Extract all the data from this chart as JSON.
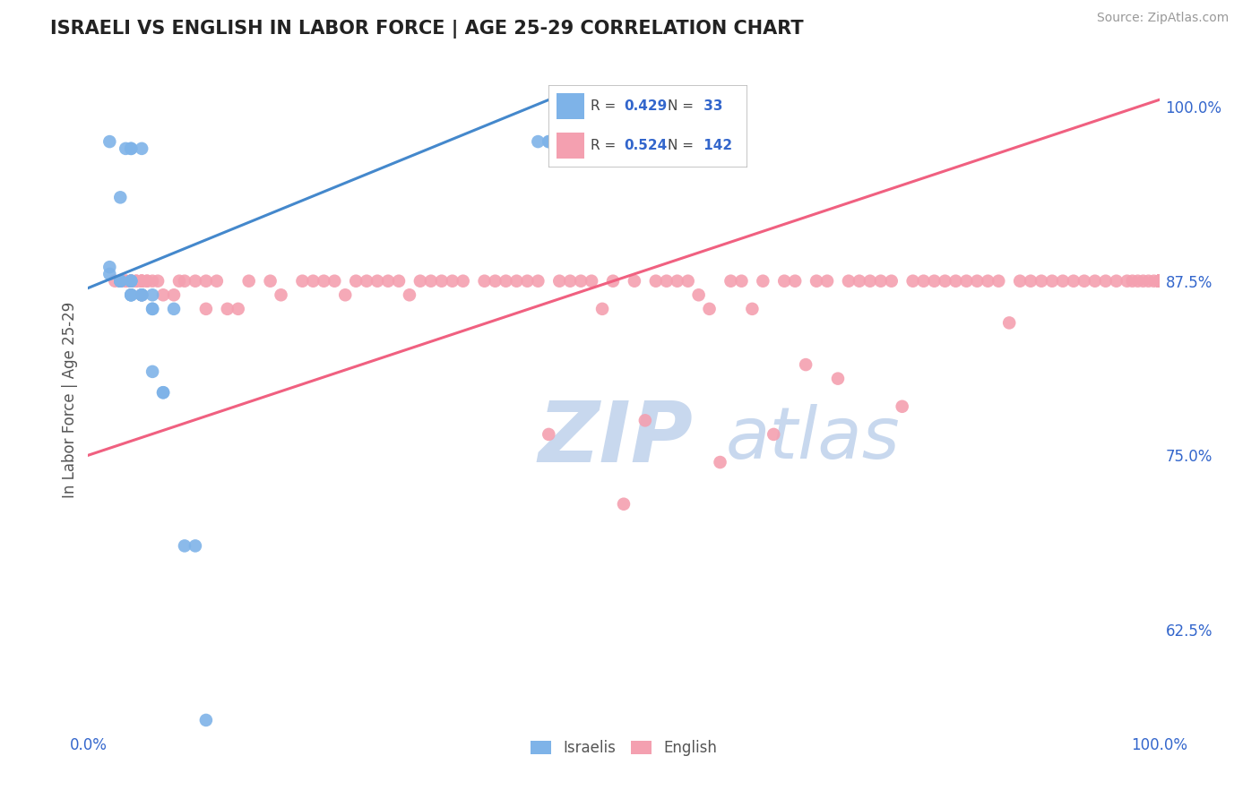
{
  "title": "ISRAELI VS ENGLISH IN LABOR FORCE | AGE 25-29 CORRELATION CHART",
  "source_text": "Source: ZipAtlas.com",
  "ylabel": "In Labor Force | Age 25-29",
  "xlim": [
    0.0,
    1.0
  ],
  "ylim": [
    0.555,
    1.025
  ],
  "yticks": [
    0.625,
    0.75,
    0.875,
    1.0
  ],
  "ytick_labels": [
    "62.5%",
    "75.0%",
    "87.5%",
    "100.0%"
  ],
  "israeli_R": 0.429,
  "israeli_N": 33,
  "english_R": 0.524,
  "english_N": 142,
  "israeli_color": "#7EB3E8",
  "english_color": "#F4A0B0",
  "israeli_line_color": "#4488CC",
  "english_line_color": "#F06080",
  "title_color": "#222222",
  "tick_label_color": "#3366CC",
  "watermark_color": "#C8D8EE",
  "background_color": "#FFFFFF",
  "grid_color": "#DDDDDD",
  "israeli_line_x": [
    0.0,
    0.43
  ],
  "israeli_line_y": [
    0.87,
    1.005
  ],
  "english_line_x": [
    0.0,
    1.0
  ],
  "english_line_y": [
    0.75,
    1.005
  ],
  "israelis_x": [
    0.02,
    0.035,
    0.04,
    0.04,
    0.05,
    0.03,
    0.02,
    0.02,
    0.03,
    0.03,
    0.03,
    0.04,
    0.04,
    0.04,
    0.04,
    0.04,
    0.04,
    0.05,
    0.05,
    0.05,
    0.06,
    0.06,
    0.06,
    0.06,
    0.07,
    0.07,
    0.08,
    0.09,
    0.1,
    0.11,
    0.42,
    0.43,
    0.43
  ],
  "israelis_y": [
    0.975,
    0.97,
    0.97,
    0.97,
    0.97,
    0.935,
    0.885,
    0.88,
    0.875,
    0.875,
    0.875,
    0.875,
    0.875,
    0.875,
    0.865,
    0.865,
    0.865,
    0.865,
    0.865,
    0.865,
    0.865,
    0.855,
    0.855,
    0.81,
    0.795,
    0.795,
    0.855,
    0.685,
    0.685,
    0.56,
    0.975,
    0.975,
    0.975
  ],
  "english_x": [
    0.025,
    0.03,
    0.03,
    0.03,
    0.035,
    0.035,
    0.04,
    0.04,
    0.04,
    0.04,
    0.04,
    0.04,
    0.04,
    0.045,
    0.045,
    0.05,
    0.05,
    0.05,
    0.05,
    0.05,
    0.055,
    0.055,
    0.06,
    0.065,
    0.07,
    0.08,
    0.085,
    0.09,
    0.1,
    0.11,
    0.11,
    0.12,
    0.13,
    0.14,
    0.15,
    0.17,
    0.18,
    0.2,
    0.21,
    0.22,
    0.23,
    0.24,
    0.25,
    0.26,
    0.27,
    0.28,
    0.29,
    0.3,
    0.31,
    0.32,
    0.33,
    0.34,
    0.35,
    0.37,
    0.38,
    0.39,
    0.4,
    0.41,
    0.42,
    0.43,
    0.44,
    0.45,
    0.46,
    0.47,
    0.48,
    0.49,
    0.5,
    0.51,
    0.52,
    0.53,
    0.54,
    0.55,
    0.56,
    0.57,
    0.58,
    0.59,
    0.6,
    0.61,
    0.62,
    0.63,
    0.64,
    0.65,
    0.66,
    0.67,
    0.68,
    0.69,
    0.7,
    0.71,
    0.72,
    0.73,
    0.74,
    0.75,
    0.76,
    0.77,
    0.78,
    0.79,
    0.8,
    0.81,
    0.82,
    0.83,
    0.84,
    0.85,
    0.86,
    0.87,
    0.88,
    0.89,
    0.9,
    0.91,
    0.92,
    0.93,
    0.94,
    0.95,
    0.96,
    0.97,
    0.975,
    0.98,
    0.985,
    0.99,
    0.995,
    1.0,
    1.0,
    1.0,
    1.0,
    1.0,
    1.0,
    1.0,
    1.0,
    1.0,
    1.0,
    1.0,
    1.0,
    1.0,
    1.0,
    1.0,
    1.0,
    1.0,
    1.0,
    1.0,
    1.0
  ],
  "english_y": [
    0.875,
    0.875,
    0.875,
    0.875,
    0.875,
    0.875,
    0.875,
    0.875,
    0.875,
    0.875,
    0.875,
    0.875,
    0.875,
    0.875,
    0.875,
    0.865,
    0.875,
    0.875,
    0.875,
    0.875,
    0.875,
    0.875,
    0.875,
    0.875,
    0.865,
    0.865,
    0.875,
    0.875,
    0.875,
    0.855,
    0.875,
    0.875,
    0.855,
    0.855,
    0.875,
    0.875,
    0.865,
    0.875,
    0.875,
    0.875,
    0.875,
    0.865,
    0.875,
    0.875,
    0.875,
    0.875,
    0.875,
    0.865,
    0.875,
    0.875,
    0.875,
    0.875,
    0.875,
    0.875,
    0.875,
    0.875,
    0.875,
    0.875,
    0.875,
    0.765,
    0.875,
    0.875,
    0.875,
    0.875,
    0.855,
    0.875,
    0.715,
    0.875,
    0.775,
    0.875,
    0.875,
    0.875,
    0.875,
    0.865,
    0.855,
    0.745,
    0.875,
    0.875,
    0.855,
    0.875,
    0.765,
    0.875,
    0.875,
    0.815,
    0.875,
    0.875,
    0.805,
    0.875,
    0.875,
    0.875,
    0.875,
    0.875,
    0.785,
    0.875,
    0.875,
    0.875,
    0.875,
    0.875,
    0.875,
    0.875,
    0.875,
    0.875,
    0.845,
    0.875,
    0.875,
    0.875,
    0.875,
    0.875,
    0.875,
    0.875,
    0.875,
    0.875,
    0.875,
    0.875,
    0.875,
    0.875,
    0.875,
    0.875,
    0.875,
    0.875,
    0.875,
    0.875,
    0.875,
    0.875,
    0.875,
    0.875,
    0.875,
    0.875,
    0.875,
    0.875,
    0.875,
    0.875,
    0.875,
    0.875,
    0.875,
    0.875,
    0.875,
    0.875,
    0.875
  ]
}
